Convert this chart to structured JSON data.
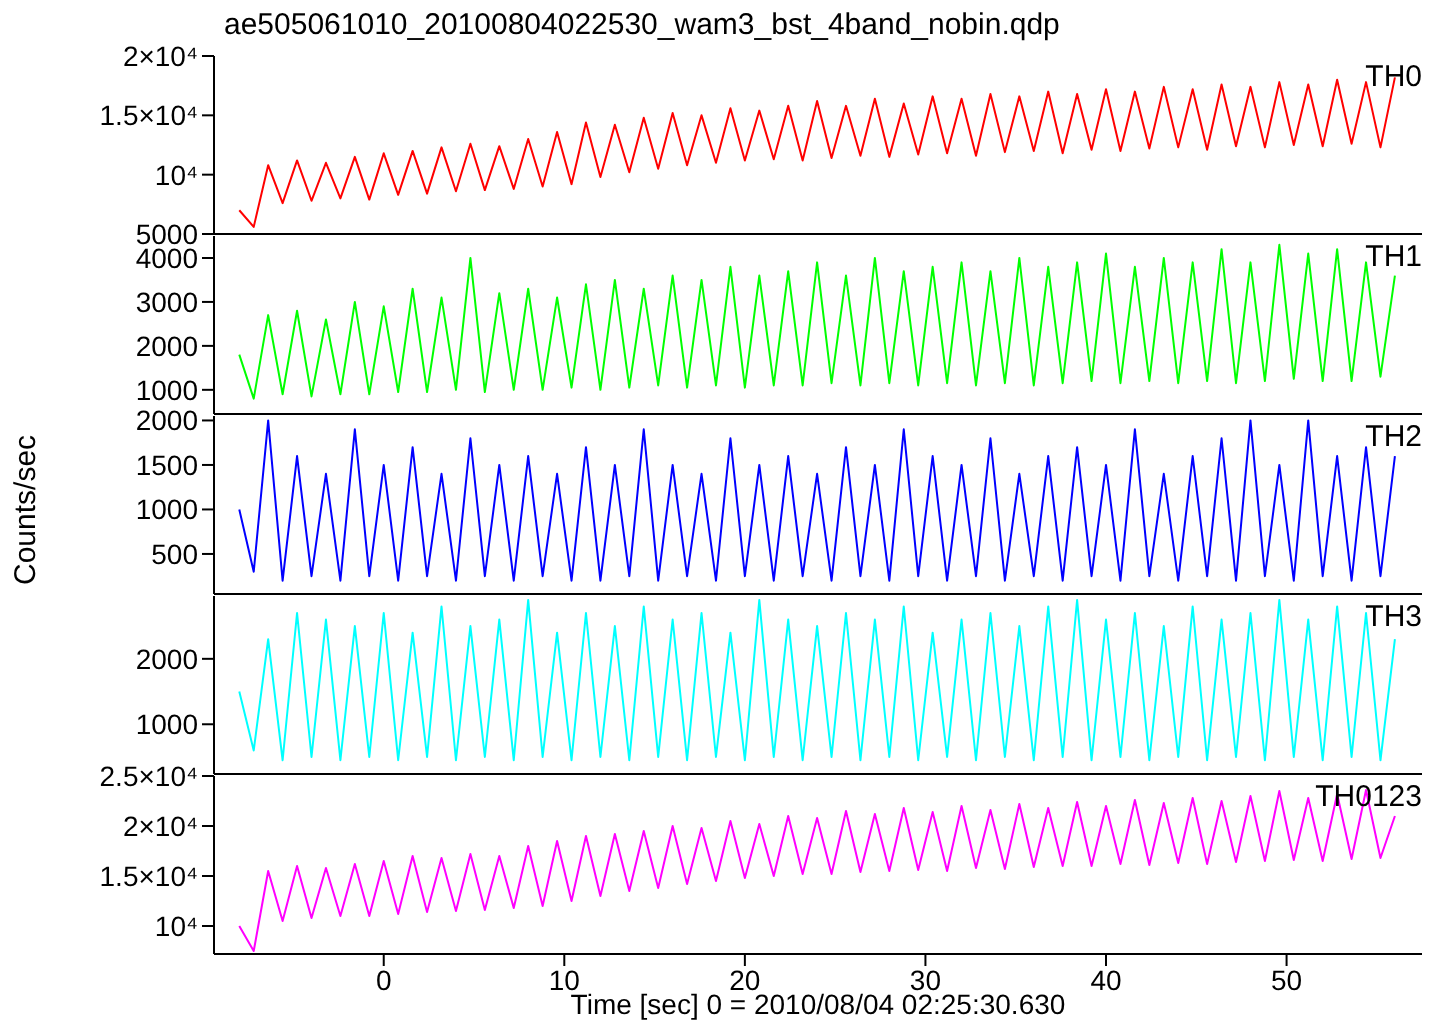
{
  "chart_data": [
    {
      "type": "line",
      "title": "ae505061010_20100804022530_wam3_bst_4band_nobin.qdp",
      "x": [
        -8,
        -7.2,
        -6.4,
        -5.6,
        -4.8,
        -4,
        -3.2,
        -2.4,
        -1.6,
        -0.8,
        0,
        0.8,
        1.6,
        2.4,
        3.2,
        4,
        4.8,
        5.6,
        6.4,
        7.2,
        8,
        8.8,
        9.6,
        10.4,
        11.2,
        12,
        12.8,
        13.6,
        14.4,
        15.2,
        16,
        16.8,
        17.6,
        18.4,
        19.2,
        20,
        20.8,
        21.6,
        22.4,
        23.2,
        24,
        24.8,
        25.6,
        26.4,
        27.2,
        28,
        28.8,
        29.6,
        30.4,
        31.2,
        32,
        32.8,
        33.6,
        34.4,
        35.2,
        36,
        36.8,
        37.6,
        38.4,
        39.2,
        40,
        40.8,
        41.6,
        42.4,
        43.2,
        44,
        44.8,
        45.6,
        46.4,
        47.2,
        48,
        48.8,
        49.6,
        50.4,
        51.2,
        52,
        52.8,
        53.6,
        54.4,
        55.2,
        56
      ],
      "series": [
        {
          "name": "TH0",
          "color": "#ff0000",
          "values": [
            7000,
            5600,
            10800,
            7600,
            11200,
            7800,
            11000,
            8000,
            11500,
            7900,
            11800,
            8300,
            12000,
            8400,
            12300,
            8600,
            12600,
            8700,
            12400,
            8800,
            13000,
            9000,
            13600,
            9200,
            14400,
            9800,
            14200,
            10200,
            14800,
            10500,
            15200,
            10800,
            15000,
            11000,
            15600,
            11200,
            15400,
            11300,
            15800,
            11200,
            16200,
            11400,
            15800,
            11600,
            16400,
            11500,
            16000,
            11700,
            16600,
            11800,
            16400,
            11600,
            16800,
            11900,
            16600,
            12000,
            17000,
            11800,
            16800,
            12100,
            17200,
            12000,
            17000,
            12200,
            17400,
            12300,
            17200,
            12100,
            17600,
            12400,
            17400,
            12300,
            17800,
            12500,
            17600,
            12400,
            18000,
            12600,
            17800,
            12300,
            18200
          ]
        }
      ],
      "xlim": [
        -9.4,
        57.5
      ],
      "xticks": [
        0,
        10,
        20,
        30,
        40,
        50
      ],
      "ylim": [
        5000,
        20000
      ],
      "yticks": [
        5000,
        {
          "value": 10000,
          "label": "10⁴"
        },
        {
          "value": 15000,
          "label": "1.5×10⁴"
        },
        {
          "value": 20000,
          "label": "2×10⁴"
        }
      ],
      "tick_labels": "y",
      "legend": "top right",
      "marker": "none",
      "grid": false
    },
    {
      "type": "line",
      "x": [
        -8,
        -7.2,
        -6.4,
        -5.6,
        -4.8,
        -4,
        -3.2,
        -2.4,
        -1.6,
        -0.8,
        0,
        0.8,
        1.6,
        2.4,
        3.2,
        4,
        4.8,
        5.6,
        6.4,
        7.2,
        8,
        8.8,
        9.6,
        10.4,
        11.2,
        12,
        12.8,
        13.6,
        14.4,
        15.2,
        16,
        16.8,
        17.6,
        18.4,
        19.2,
        20,
        20.8,
        21.6,
        22.4,
        23.2,
        24,
        24.8,
        25.6,
        26.4,
        27.2,
        28,
        28.8,
        29.6,
        30.4,
        31.2,
        32,
        32.8,
        33.6,
        34.4,
        35.2,
        36,
        36.8,
        37.6,
        38.4,
        39.2,
        40,
        40.8,
        41.6,
        42.4,
        43.2,
        44,
        44.8,
        45.6,
        46.4,
        47.2,
        48,
        48.8,
        49.6,
        50.4,
        51.2,
        52,
        52.8,
        53.6,
        54.4,
        55.2,
        56
      ],
      "series": [
        {
          "name": "TH1",
          "color": "#00ff00",
          "values": [
            1800,
            800,
            2700,
            900,
            2800,
            850,
            2600,
            900,
            3000,
            900,
            2900,
            950,
            3300,
            950,
            3100,
            1000,
            4000,
            950,
            3200,
            1000,
            3300,
            1000,
            3100,
            1050,
            3400,
            1000,
            3500,
            1050,
            3300,
            1100,
            3600,
            1050,
            3500,
            1100,
            3800,
            1050,
            3600,
            1100,
            3700,
            1100,
            3900,
            1150,
            3600,
            1100,
            4000,
            1150,
            3700,
            1100,
            3800,
            1150,
            3900,
            1100,
            3700,
            1150,
            4000,
            1100,
            3800,
            1150,
            3900,
            1200,
            4100,
            1150,
            3800,
            1200,
            4000,
            1150,
            3900,
            1200,
            4200,
            1150,
            3900,
            1200,
            4300,
            1250,
            4100,
            1200,
            4200,
            1200,
            3900,
            1300,
            3600
          ]
        }
      ],
      "xlim": [
        -9.4,
        57.5
      ],
      "xticks": [
        0,
        10,
        20,
        30,
        40,
        50
      ],
      "ylim": [
        450,
        4500
      ],
      "yticks": [
        1000,
        2000,
        3000,
        4000
      ],
      "tick_labels": "y",
      "legend": "top right",
      "marker": "none",
      "grid": false
    },
    {
      "type": "line",
      "ylabel": "Counts/sec",
      "x": [
        -8,
        -7.2,
        -6.4,
        -5.6,
        -4.8,
        -4,
        -3.2,
        -2.4,
        -1.6,
        -0.8,
        0,
        0.8,
        1.6,
        2.4,
        3.2,
        4,
        4.8,
        5.6,
        6.4,
        7.2,
        8,
        8.8,
        9.6,
        10.4,
        11.2,
        12,
        12.8,
        13.6,
        14.4,
        15.2,
        16,
        16.8,
        17.6,
        18.4,
        19.2,
        20,
        20.8,
        21.6,
        22.4,
        23.2,
        24,
        24.8,
        25.6,
        26.4,
        27.2,
        28,
        28.8,
        29.6,
        30.4,
        31.2,
        32,
        32.8,
        33.6,
        34.4,
        35.2,
        36,
        36.8,
        37.6,
        38.4,
        39.2,
        40,
        40.8,
        41.6,
        42.4,
        43.2,
        44,
        44.8,
        45.6,
        46.4,
        47.2,
        48,
        48.8,
        49.6,
        50.4,
        51.2,
        52,
        52.8,
        53.6,
        54.4,
        55.2,
        56
      ],
      "series": [
        {
          "name": "TH2",
          "color": "#0000ff",
          "values": [
            1000,
            300,
            2000,
            200,
            1600,
            250,
            1400,
            200,
            1900,
            250,
            1500,
            200,
            1700,
            250,
            1400,
            200,
            1800,
            250,
            1500,
            200,
            1600,
            250,
            1400,
            200,
            1700,
            200,
            1500,
            250,
            1900,
            200,
            1500,
            250,
            1400,
            200,
            1800,
            250,
            1500,
            200,
            1600,
            250,
            1400,
            200,
            1700,
            250,
            1500,
            200,
            1900,
            250,
            1600,
            200,
            1500,
            250,
            1800,
            200,
            1400,
            250,
            1600,
            200,
            1700,
            250,
            1500,
            200,
            1900,
            250,
            1400,
            200,
            1600,
            250,
            1800,
            200,
            2000,
            250,
            1500,
            200,
            2000,
            250,
            1600,
            200,
            1700,
            250,
            1600
          ]
        }
      ],
      "xlim": [
        -9.4,
        57.5
      ],
      "xticks": [
        0,
        10,
        20,
        30,
        40,
        50
      ],
      "ylim": [
        50,
        2050
      ],
      "yticks": [
        500,
        1000,
        1500,
        2000
      ],
      "tick_labels": "y",
      "legend": "top right",
      "marker": "none",
      "grid": false
    },
    {
      "type": "line",
      "x": [
        -8,
        -7.2,
        -6.4,
        -5.6,
        -4.8,
        -4,
        -3.2,
        -2.4,
        -1.6,
        -0.8,
        0,
        0.8,
        1.6,
        2.4,
        3.2,
        4,
        4.8,
        5.6,
        6.4,
        7.2,
        8,
        8.8,
        9.6,
        10.4,
        11.2,
        12,
        12.8,
        13.6,
        14.4,
        15.2,
        16,
        16.8,
        17.6,
        18.4,
        19.2,
        20,
        20.8,
        21.6,
        22.4,
        23.2,
        24,
        24.8,
        25.6,
        26.4,
        27.2,
        28,
        28.8,
        29.6,
        30.4,
        31.2,
        32,
        32.8,
        33.6,
        34.4,
        35.2,
        36,
        36.8,
        37.6,
        38.4,
        39.2,
        40,
        40.8,
        41.6,
        42.4,
        43.2,
        44,
        44.8,
        45.6,
        46.4,
        47.2,
        48,
        48.8,
        49.6,
        50.4,
        51.2,
        52,
        52.8,
        53.6,
        54.4,
        55.2,
        56
      ],
      "series": [
        {
          "name": "TH3",
          "color": "#00ffff",
          "values": [
            1500,
            600,
            2300,
            450,
            2700,
            500,
            2600,
            450,
            2500,
            500,
            2700,
            450,
            2400,
            500,
            2800,
            450,
            2500,
            500,
            2600,
            450,
            2900,
            500,
            2400,
            450,
            2700,
            500,
            2500,
            450,
            2800,
            500,
            2600,
            450,
            2700,
            500,
            2400,
            450,
            2900,
            500,
            2600,
            450,
            2500,
            500,
            2700,
            450,
            2600,
            500,
            2800,
            450,
            2400,
            500,
            2600,
            450,
            2700,
            500,
            2500,
            450,
            2800,
            500,
            2900,
            450,
            2600,
            500,
            2700,
            450,
            2500,
            500,
            2800,
            450,
            2600,
            500,
            2700,
            450,
            2900,
            500,
            2600,
            450,
            2800,
            500,
            2700,
            450,
            2300
          ]
        }
      ],
      "xlim": [
        -9.4,
        57.5
      ],
      "xticks": [
        0,
        10,
        20,
        30,
        40,
        50
      ],
      "ylim": [
        240,
        2960
      ],
      "yticks": [
        1000,
        2000
      ],
      "tick_labels": "y",
      "legend": "top right",
      "marker": "none",
      "grid": false
    },
    {
      "type": "line",
      "xlabel": "Time [sec] 0 = 2010/08/04 02:25:30.630",
      "x": [
        -8,
        -7.2,
        -6.4,
        -5.6,
        -4.8,
        -4,
        -3.2,
        -2.4,
        -1.6,
        -0.8,
        0,
        0.8,
        1.6,
        2.4,
        3.2,
        4,
        4.8,
        5.6,
        6.4,
        7.2,
        8,
        8.8,
        9.6,
        10.4,
        11.2,
        12,
        12.8,
        13.6,
        14.4,
        15.2,
        16,
        16.8,
        17.6,
        18.4,
        19.2,
        20,
        20.8,
        21.6,
        22.4,
        23.2,
        24,
        24.8,
        25.6,
        26.4,
        27.2,
        28,
        28.8,
        29.6,
        30.4,
        31.2,
        32,
        32.8,
        33.6,
        34.4,
        35.2,
        36,
        36.8,
        37.6,
        38.4,
        39.2,
        40,
        40.8,
        41.6,
        42.4,
        43.2,
        44,
        44.8,
        45.6,
        46.4,
        47.2,
        48,
        48.8,
        49.6,
        50.4,
        51.2,
        52,
        52.8,
        53.6,
        54.4,
        55.2,
        56
      ],
      "series": [
        {
          "name": "TH0123",
          "color": "#ff00ff",
          "values": [
            10000,
            7500,
            15500,
            10500,
            16000,
            10800,
            15800,
            11000,
            16200,
            11000,
            16500,
            11200,
            17000,
            11400,
            16800,
            11500,
            17200,
            11600,
            17000,
            11800,
            18000,
            12000,
            18500,
            12500,
            19000,
            13000,
            19200,
            13500,
            19500,
            13800,
            20000,
            14200,
            19800,
            14500,
            20500,
            14800,
            20200,
            15000,
            21000,
            15200,
            20800,
            15200,
            21500,
            15400,
            21200,
            15500,
            21800,
            15600,
            21400,
            15500,
            22000,
            15800,
            21600,
            15700,
            22200,
            15900,
            21800,
            16000,
            22400,
            16000,
            22000,
            16200,
            22600,
            16100,
            22300,
            16300,
            22800,
            16200,
            22500,
            16400,
            23000,
            16500,
            23500,
            16600,
            22800,
            16500,
            23200,
            16700,
            23600,
            16800,
            21000
          ]
        }
      ],
      "xlim": [
        -9.4,
        57.5
      ],
      "xticks": [
        0,
        10,
        20,
        30,
        40,
        50
      ],
      "ylim": [
        7200,
        25000
      ],
      "yticks": [
        {
          "value": 10000,
          "label": "10⁴"
        },
        {
          "value": 15000,
          "label": "1.5×10⁴"
        },
        {
          "value": 20000,
          "label": "2×10⁴"
        },
        {
          "value": 25000,
          "label": "2.5×10⁴"
        }
      ],
      "legend": "top right",
      "marker": "none",
      "grid": false
    }
  ]
}
